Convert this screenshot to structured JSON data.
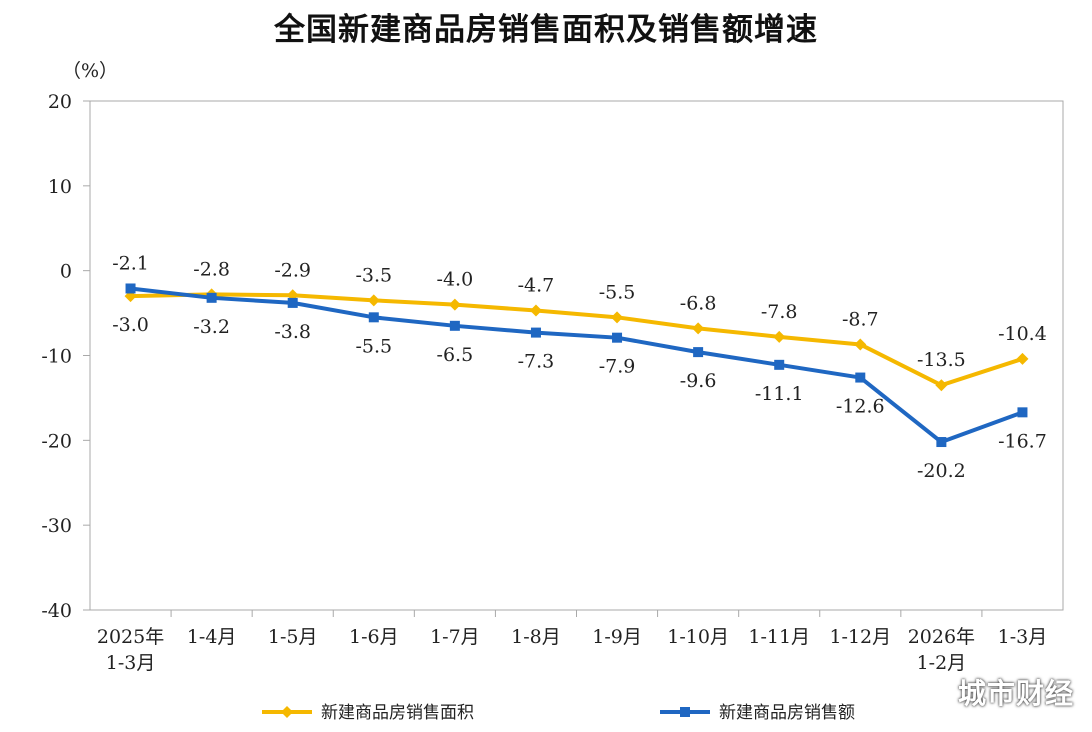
{
  "chart_data": {
    "type": "line",
    "title": "全国新建商品房销售面积及销售额增速",
    "unit_label": "（%）",
    "ylim": [
      -40,
      20
    ],
    "yticks": [
      20,
      10,
      0,
      -10,
      -20,
      -30,
      -40
    ],
    "categories": [
      [
        "2025年",
        "1-3月"
      ],
      [
        "1-4月"
      ],
      [
        "1-5月"
      ],
      [
        "1-6月"
      ],
      [
        "1-7月"
      ],
      [
        "1-8月"
      ],
      [
        "1-9月"
      ],
      [
        "1-10月"
      ],
      [
        "1-11月"
      ],
      [
        "1-12月"
      ],
      [
        "2026年",
        "1-2月"
      ],
      [
        "1-3月"
      ]
    ],
    "series": [
      {
        "name": "新建商品房销售面积",
        "color": "#F5B800",
        "marker": "diamond",
        "values": [
          -3.0,
          -2.8,
          -2.9,
          -3.5,
          -4.0,
          -4.7,
          -5.5,
          -6.8,
          -7.8,
          -8.7,
          -13.5,
          -10.4
        ],
        "label_position": [
          "below",
          "above",
          "above",
          "above",
          "above",
          "above",
          "above",
          "above",
          "above",
          "above",
          "above",
          "above"
        ]
      },
      {
        "name": "新建商品房销售额",
        "color": "#1F67C2",
        "marker": "square",
        "values": [
          -2.1,
          -3.2,
          -3.8,
          -5.5,
          -6.5,
          -7.3,
          -7.9,
          -9.6,
          -11.1,
          -12.6,
          -20.2,
          -16.7
        ],
        "label_position": [
          "above",
          "below",
          "below",
          "below",
          "below",
          "below",
          "below",
          "below",
          "below",
          "below",
          "below",
          "below"
        ]
      }
    ],
    "grid": false,
    "legend_position": "bottom"
  },
  "watermark": "城市财经"
}
